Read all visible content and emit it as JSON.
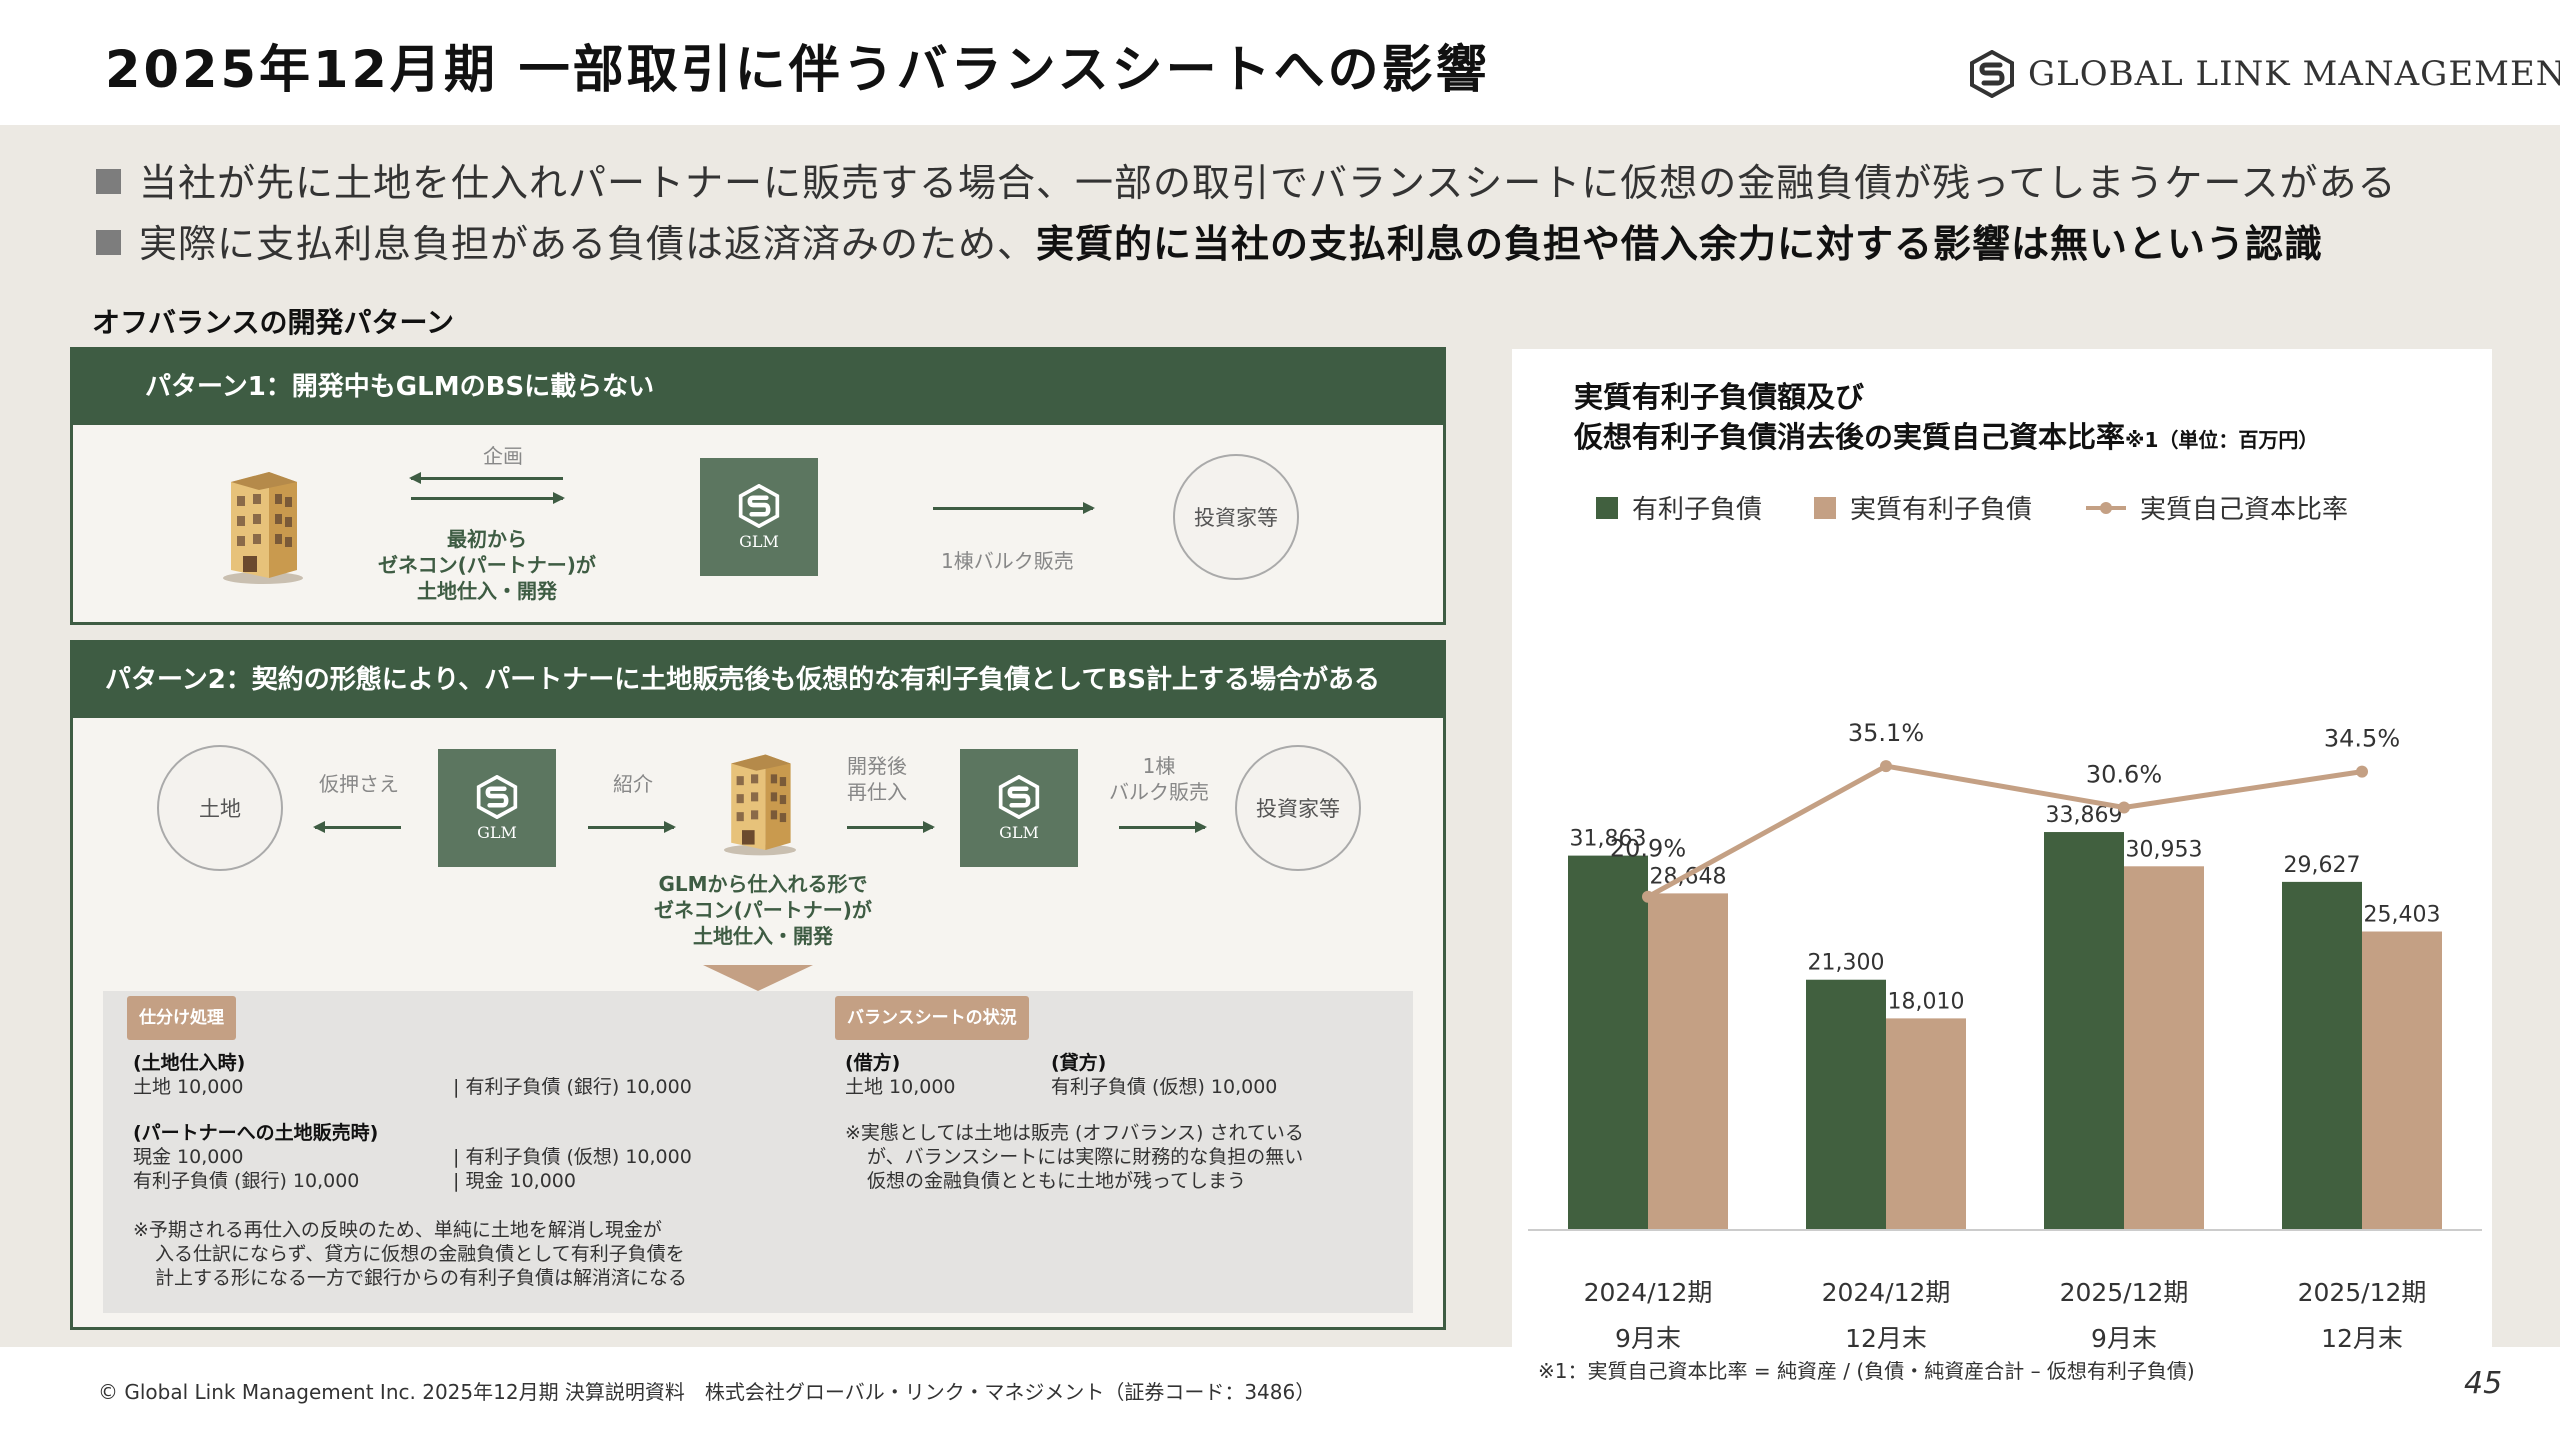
{
  "header": {
    "title": "2025年12月期 一部取引に伴うバランスシートへの影響",
    "logo_text": "GLOBAL LINK MANAGEMENT"
  },
  "bullets": [
    {
      "text": "当社が先に土地を仕入れパートナーに販売する場合、一部の取引でバランスシートに仮想の金融負債が残ってしまうケースがある",
      "bold": ""
    },
    {
      "text": "実際に支払利息負担がある負債は返済済みのため、",
      "bold": "実質的に当社の支払利息の負担や借入余力に対する影響は無いという認識"
    }
  ],
  "section_label": "オフバランスの開発パターン",
  "pattern1": {
    "title": "パターン1：開発中もGLMのBSに載らない",
    "plan_label": "企画",
    "dev_label_lines": [
      "最初から",
      "ゼネコン(パートナー)が",
      "土地仕入・開発"
    ],
    "glm": "GLM",
    "sale_label": "1棟バルク販売",
    "investor": "投資家等"
  },
  "pattern2": {
    "title": "パターン2：契約の形態により、パートナーに土地販売後も仮想的な有利子負債としてBS計上する場合がある",
    "land": "土地",
    "provisional": "仮押さえ",
    "glm": "GLM",
    "intro": "紹介",
    "repurchase_lines": [
      "開発後",
      "再仕入"
    ],
    "bulk_lines": [
      "1棟",
      "バルク販売"
    ],
    "investor": "投資家等",
    "dev_lines": [
      "GLMから仕入れる形で",
      "ゼネコン(パートナー)が",
      "土地仕入・開発"
    ],
    "journal_tag": "仕分け処理",
    "bs_tag": "バランスシートの状況",
    "journal": {
      "h1": "(土地仕入時)",
      "r1_left": "土地 10,000",
      "r1_right": "| 有利子負債 (銀行) 10,000",
      "h2": "(パートナーへの土地販売時)",
      "r2_left": "現金 10,000",
      "r2_right": "| 有利子負債 (仮想) 10,000",
      "r3_left": "有利子負債 (銀行) 10,000",
      "r3_right": "| 現金 10,000",
      "note_lines": [
        "※予期される再仕入の反映のため、単純に土地を解消し現金が",
        "入る仕訳にならず、貸方に仮想の金融負債として有利子負債を",
        "計上する形になる一方で銀行からの有利子負債は解消済になる"
      ]
    },
    "bs": {
      "debit_h": "(借方)",
      "credit_h": "(貸方)",
      "debit_v": "土地 10,000",
      "credit_v": "有利子負債 (仮想) 10,000",
      "note_lines": [
        "※実態としては土地は販売 (オフバランス) されている",
        "が、バランスシートには実際に財務的な負担の無い",
        "仮想の金融負債とともに土地が残ってしまう"
      ]
    }
  },
  "chart": {
    "title_line1": "実質有利子負債額及び",
    "title_line2": "仮想有利子負債消去後の実質自己資本比率",
    "title_note": "※1（単位：百万円）",
    "footnote": "※1：実質自己資本比率 = 純資産 / (負債・純資産合計 – 仮想有利子負債)"
  },
  "chart_data": {
    "type": "bar",
    "categories": [
      [
        "2024/12期",
        "9月末"
      ],
      [
        "2024/12期",
        "12月末"
      ],
      [
        "2025/12期",
        "9月末"
      ],
      [
        "2025/12期",
        "12月末"
      ]
    ],
    "series": [
      {
        "name": "有利子負債",
        "type": "bar",
        "color": "#41603f",
        "values": [
          31863,
          21300,
          33869,
          29627
        ],
        "labels": [
          "31,863",
          "21,300",
          "33,869",
          "29,627"
        ]
      },
      {
        "name": "実質有利子負債",
        "type": "bar",
        "color": "#c4a084",
        "values": [
          28648,
          18010,
          30953,
          25403
        ],
        "labels": [
          "28,648",
          "18,010",
          "30,953",
          "25,403"
        ]
      },
      {
        "name": "実質自己資本比率",
        "type": "line",
        "color": "#c4a084",
        "values": [
          20.9,
          35.1,
          30.6,
          34.5
        ],
        "labels": [
          "20.9%",
          "35.1%",
          "30.6%",
          "34.5%"
        ]
      }
    ],
    "ylim": [
      0,
      36000
    ],
    "ratio_lim": [
      0,
      50
    ]
  },
  "footer": {
    "copyright": "© Global Link Management Inc. 2025年12月期 決算説明資料　株式会社グローバル・リンク・マネジメント（証券コード：3486）",
    "page": "45"
  }
}
